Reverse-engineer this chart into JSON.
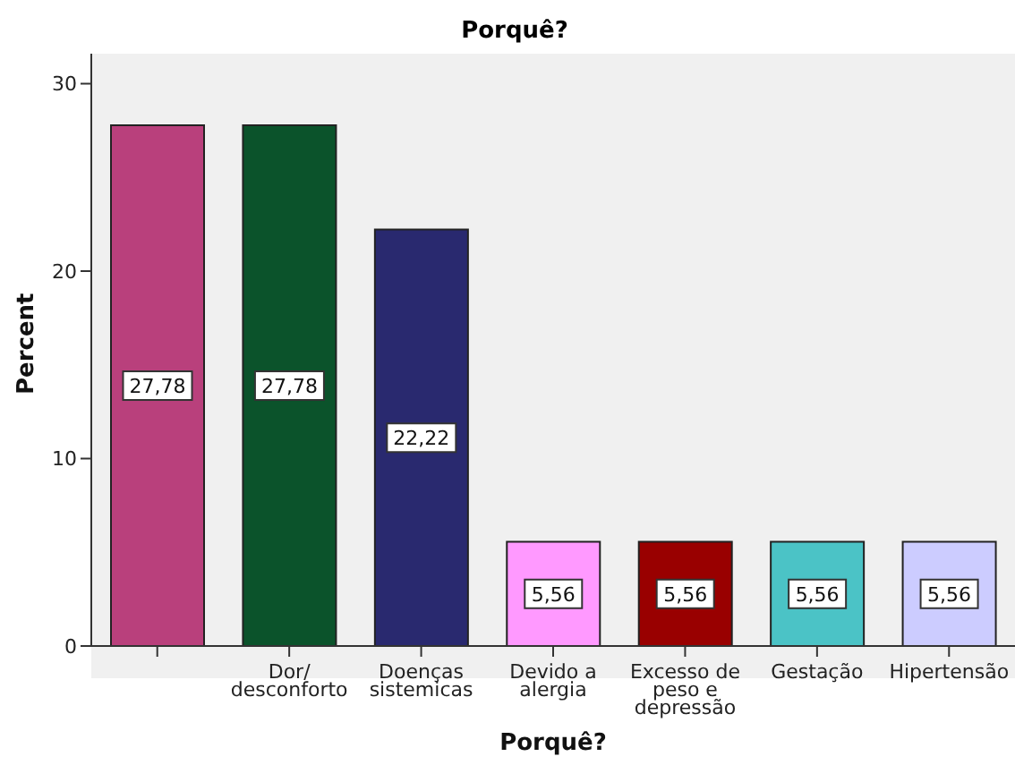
{
  "chart_data": {
    "type": "bar",
    "title": "Porquê?",
    "xlabel": "Porquê?",
    "ylabel": "Percent",
    "categories": [
      null,
      "Dor/ desconforto",
      "Doenças sistemicas",
      "Devido a alergia",
      "Excesso de peso e depressão",
      "Gestação",
      "Hipertensão"
    ],
    "values": [
      27.78,
      27.78,
      22.22,
      5.56,
      5.56,
      5.56,
      5.56
    ],
    "value_labels": [
      "27,78",
      "27,78",
      "22,22",
      "5,56",
      "5,56",
      "5,56",
      "5,56"
    ],
    "colors": [
      "#b9407c",
      "#0b532b",
      "#29296f",
      "#ff99ff",
      "#990000",
      "#4bc3c6",
      "#ccccff"
    ],
    "ylim": [
      0,
      31.6
    ],
    "yticks": [
      0,
      10,
      20,
      30
    ],
    "grid": false,
    "legend": false
  }
}
